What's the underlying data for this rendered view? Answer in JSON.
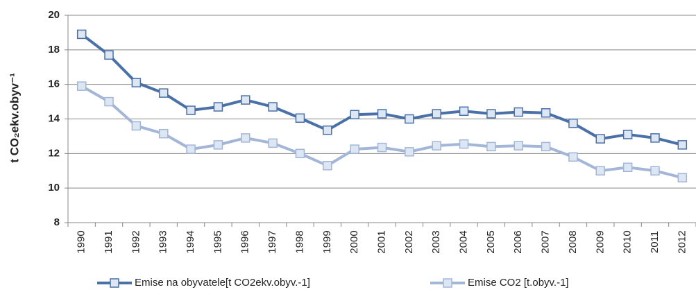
{
  "chart_data": {
    "type": "line",
    "y_label": "t CO₂ekv.obyv⁻¹",
    "categories": [
      "1990",
      "1991",
      "1992",
      "1993",
      "1994",
      "1995",
      "1996",
      "1997",
      "1998",
      "1999",
      "2000",
      "2001",
      "2002",
      "2003",
      "2004",
      "2005",
      "2006",
      "2007",
      "2008",
      "2009",
      "2010",
      "2011",
      "2012"
    ],
    "series": [
      {
        "name": "Emise na obyvatele[t CO2ekv.obyv.-1]",
        "color": "#4a70a8",
        "values": [
          18.9,
          17.7,
          16.1,
          15.5,
          14.5,
          14.7,
          15.1,
          14.7,
          14.05,
          13.35,
          14.25,
          14.3,
          14.0,
          14.3,
          14.45,
          14.3,
          14.4,
          14.35,
          13.75,
          12.85,
          13.1,
          12.9,
          12.5
        ]
      },
      {
        "name": "Emise CO2 [t.obyv.-1]",
        "color": "#a3b6d8",
        "values": [
          15.9,
          15.0,
          13.6,
          13.15,
          12.25,
          12.5,
          12.9,
          12.6,
          12.0,
          11.3,
          12.25,
          12.35,
          12.1,
          12.45,
          12.55,
          12.4,
          12.45,
          12.4,
          11.8,
          11.0,
          11.2,
          11.0,
          10.6
        ]
      }
    ],
    "ylim": [
      8,
      20
    ],
    "yticks": [
      8,
      10,
      12,
      14,
      16,
      18,
      20
    ],
    "grid": true,
    "legend": "bottom"
  }
}
